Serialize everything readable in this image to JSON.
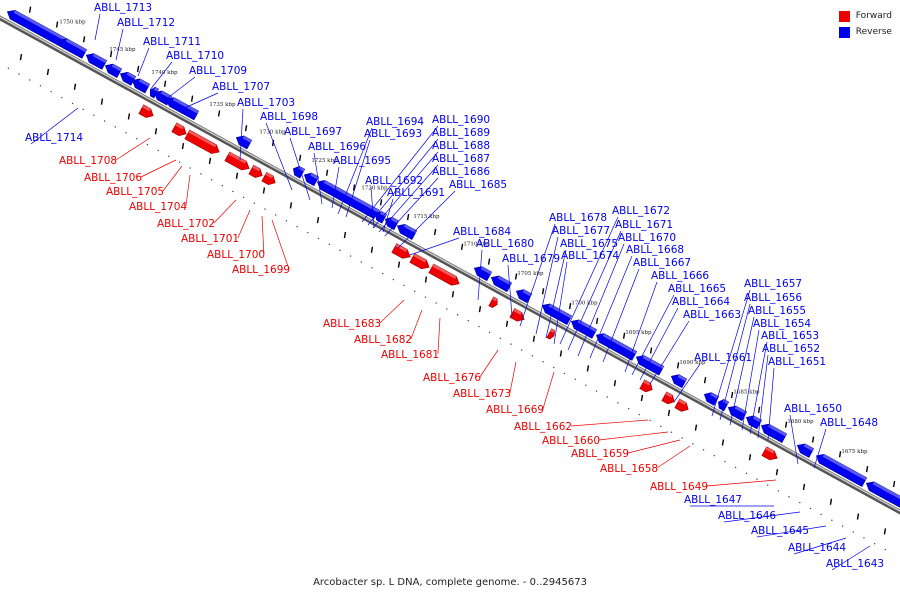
{
  "caption": "Arcobacter sp. L DNA, complete genome. - 0..2945673",
  "legend": [
    {
      "label": "Forward",
      "color": "#ee0000"
    },
    {
      "label": "Reverse",
      "color": "#0000ee"
    }
  ],
  "colors": {
    "forward": "#ee0000",
    "reverse": "#0000ee",
    "backbone": "#808080",
    "ticks": "#000000"
  },
  "scale_ticks": [
    "1750 kbp",
    "1745 kbp",
    "1740 kbp",
    "1735 kbp",
    "1730 kbp",
    "1725 kbp",
    "1720 kbp",
    "1715 kbp",
    "1710 kbp",
    "1705 kbp",
    "1700 kbp",
    "1695 kbp",
    "1690 kbp",
    "1685 kbp",
    "1680 kbp",
    "1675 kbp"
  ],
  "reverse_labels": [
    "ABLL_1713",
    "ABLL_1712",
    "ABLL_1711",
    "ABLL_1710",
    "ABLL_1709",
    "ABLL_1707",
    "ABLL_1703",
    "ABLL_1698",
    "ABLL_1697",
    "ABLL_1696",
    "ABLL_1695",
    "ABLL_1694",
    "ABLL_1693",
    "ABLL_1692",
    "ABLL_1691",
    "ABLL_1690",
    "ABLL_1689",
    "ABLL_1688",
    "ABLL_1687",
    "ABLL_1686",
    "ABLL_1685",
    "ABLL_1684",
    "ABLL_1680",
    "ABLL_1679",
    "ABLL_1678",
    "ABLL_1677",
    "ABLL_1675",
    "ABLL_1674",
    "ABLL_1672",
    "ABLL_1671",
    "ABLL_1670",
    "ABLL_1668",
    "ABLL_1667",
    "ABLL_1666",
    "ABLL_1665",
    "ABLL_1664",
    "ABLL_1663",
    "ABLL_1661",
    "ABLL_1657",
    "ABLL_1656",
    "ABLL_1655",
    "ABLL_1654",
    "ABLL_1653",
    "ABLL_1652",
    "ABLL_1651",
    "ABLL_1650",
    "ABLL_1648",
    "ABLL_1647",
    "ABLL_1646",
    "ABLL_1645",
    "ABLL_1644",
    "ABLL_1643",
    "ABLL_1714"
  ],
  "forward_labels": [
    "ABLL_1708",
    "ABLL_1706",
    "ABLL_1705",
    "ABLL_1704",
    "ABLL_1702",
    "ABLL_1701",
    "ABLL_1700",
    "ABLL_1699",
    "ABLL_1683",
    "ABLL_1682",
    "ABLL_1681",
    "ABLL_1676",
    "ABLL_1673",
    "ABLL_1669",
    "ABLL_1662",
    "ABLL_1660",
    "ABLL_1659",
    "ABLL_1658",
    "ABLL_1649"
  ]
}
